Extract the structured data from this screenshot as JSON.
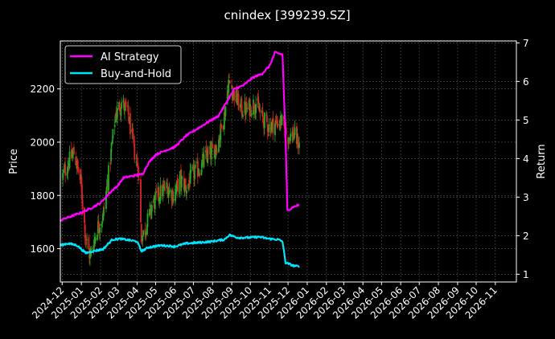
{
  "chart_data": {
    "type": "candlestick+line",
    "title": "cnindex [399239.SZ]",
    "ylabel_left": "Price",
    "ylabel_right": "Return",
    "ylim_left": [
      1475,
      2380
    ],
    "ylim_right": [
      0.8,
      7.05
    ],
    "yticks_left": [
      1600,
      1800,
      2000,
      2200
    ],
    "yticks_right": [
      1,
      2,
      3,
      4,
      5,
      6,
      7
    ],
    "xlim": [
      "2024-11-28",
      "2026-12-05"
    ],
    "xticks": [
      "2024-12",
      "2025-01",
      "2025-02",
      "2025-03",
      "2025-04",
      "2025-05",
      "2025-06",
      "2025-07",
      "2025-08",
      "2025-09",
      "2025-10",
      "2025-11",
      "2025-12",
      "2026-01",
      "2026-02",
      "2026-03",
      "2026-04",
      "2026-05",
      "2026-06",
      "2026-07",
      "2026-08",
      "2026-09",
      "2026-10",
      "2026-11"
    ],
    "grid": true,
    "legend_position": "top-left",
    "colors": {
      "up": "#22aa22",
      "down": "#dd2222",
      "ai": "#ff00ff",
      "bh": "#00e5ff",
      "grid": "#555555"
    },
    "price_anchors": [
      [
        "2024-12-02",
        1870
      ],
      [
        "2024-12-10",
        1920
      ],
      [
        "2024-12-20",
        1960
      ],
      [
        "2024-12-31",
        1850
      ],
      [
        "2025-01-08",
        1640
      ],
      [
        "2025-01-15",
        1570
      ],
      [
        "2025-01-27",
        1680
      ],
      [
        "2025-02-05",
        1720
      ],
      [
        "2025-02-14",
        1880
      ],
      [
        "2025-02-25",
        2100
      ],
      [
        "2025-03-07",
        2150
      ],
      [
        "2025-03-18",
        2100
      ],
      [
        "2025-03-28",
        1960
      ],
      [
        "2025-04-03",
        1900
      ],
      [
        "2025-04-08",
        1640
      ],
      [
        "2025-04-15",
        1680
      ],
      [
        "2025-04-25",
        1760
      ],
      [
        "2025-05-08",
        1810
      ],
      [
        "2025-05-20",
        1830
      ],
      [
        "2025-05-30",
        1800
      ],
      [
        "2025-06-10",
        1860
      ],
      [
        "2025-06-20",
        1830
      ],
      [
        "2025-06-30",
        1880
      ],
      [
        "2025-07-10",
        1900
      ],
      [
        "2025-07-20",
        1940
      ],
      [
        "2025-07-31",
        1960
      ],
      [
        "2025-08-10",
        2000
      ],
      [
        "2025-08-20",
        2100
      ],
      [
        "2025-08-27",
        2230
      ],
      [
        "2025-09-05",
        2180
      ],
      [
        "2025-09-15",
        2130
      ],
      [
        "2025-09-25",
        2120
      ],
      [
        "2025-10-10",
        2150
      ],
      [
        "2025-10-20",
        2090
      ],
      [
        "2025-10-31",
        2060
      ],
      [
        "2025-11-10",
        2070
      ],
      [
        "2025-11-20",
        2080
      ],
      [
        "2025-11-30",
        2020
      ],
      [
        "2025-12-10",
        2030
      ],
      [
        "2025-12-19",
        1990
      ]
    ],
    "series": [
      {
        "name": "AI Strategy",
        "points": [
          [
            "2024-11-28",
            2.4
          ],
          [
            "2024-12-15",
            2.5
          ],
          [
            "2025-01-01",
            2.6
          ],
          [
            "2025-01-15",
            2.7
          ],
          [
            "2025-02-01",
            2.85
          ],
          [
            "2025-02-15",
            3.1
          ],
          [
            "2025-03-01",
            3.3
          ],
          [
            "2025-03-10",
            3.5
          ],
          [
            "2025-03-25",
            3.55
          ],
          [
            "2025-04-10",
            3.6
          ],
          [
            "2025-04-20",
            3.9
          ],
          [
            "2025-05-01",
            4.1
          ],
          [
            "2025-05-15",
            4.2
          ],
          [
            "2025-06-01",
            4.3
          ],
          [
            "2025-06-20",
            4.6
          ],
          [
            "2025-07-10",
            4.8
          ],
          [
            "2025-07-25",
            4.95
          ],
          [
            "2025-08-10",
            5.1
          ],
          [
            "2025-08-25",
            5.5
          ],
          [
            "2025-09-05",
            5.8
          ],
          [
            "2025-09-20",
            5.9
          ],
          [
            "2025-10-05",
            6.1
          ],
          [
            "2025-10-20",
            6.2
          ],
          [
            "2025-11-01",
            6.4
          ],
          [
            "2025-11-10",
            6.75
          ],
          [
            "2025-11-22",
            6.7
          ],
          [
            "2025-11-27",
            4.5
          ],
          [
            "2025-11-30",
            2.65
          ],
          [
            "2025-12-10",
            2.75
          ],
          [
            "2025-12-19",
            2.8
          ]
        ]
      },
      {
        "name": "Buy-and-Hold",
        "points": [
          [
            "2024-11-28",
            1.75
          ],
          [
            "2024-12-10",
            1.8
          ],
          [
            "2024-12-25",
            1.75
          ],
          [
            "2025-01-08",
            1.55
          ],
          [
            "2025-01-20",
            1.6
          ],
          [
            "2025-02-05",
            1.65
          ],
          [
            "2025-02-20",
            1.9
          ],
          [
            "2025-03-05",
            1.92
          ],
          [
            "2025-03-20",
            1.88
          ],
          [
            "2025-04-01",
            1.85
          ],
          [
            "2025-04-08",
            1.6
          ],
          [
            "2025-04-20",
            1.7
          ],
          [
            "2025-05-10",
            1.75
          ],
          [
            "2025-06-01",
            1.72
          ],
          [
            "2025-06-20",
            1.8
          ],
          [
            "2025-07-10",
            1.82
          ],
          [
            "2025-07-31",
            1.85
          ],
          [
            "2025-08-20",
            1.9
          ],
          [
            "2025-08-28",
            2.02
          ],
          [
            "2025-09-10",
            1.95
          ],
          [
            "2025-09-30",
            1.95
          ],
          [
            "2025-10-15",
            1.97
          ],
          [
            "2025-10-31",
            1.92
          ],
          [
            "2025-11-15",
            1.9
          ],
          [
            "2025-11-22",
            1.85
          ],
          [
            "2025-11-27",
            1.3
          ],
          [
            "2025-12-10",
            1.22
          ],
          [
            "2025-12-19",
            1.2
          ]
        ]
      }
    ]
  }
}
